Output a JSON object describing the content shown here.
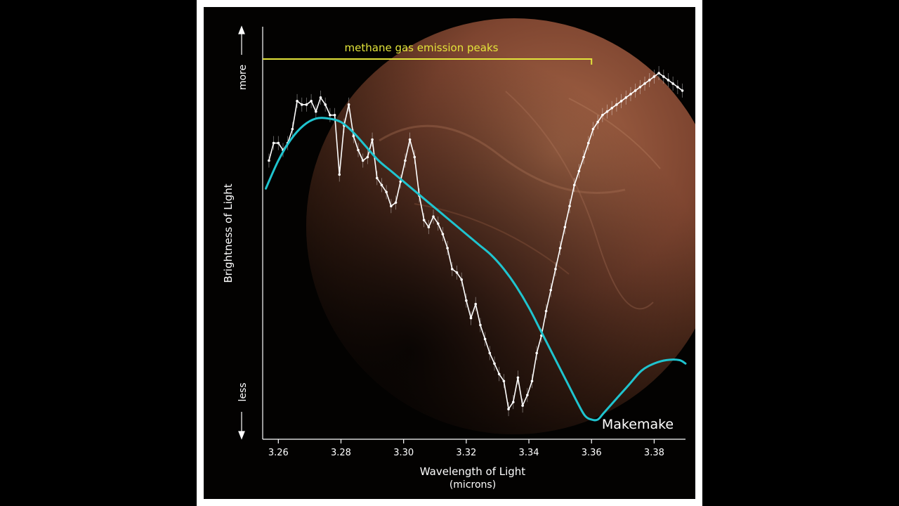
{
  "colors": {
    "background": "#030201",
    "frame": "#ffffff",
    "planet": "#8a4f33",
    "data_line": "#ffffff",
    "model_curve": "#1fc4cf",
    "annotation": "#e3e43a",
    "axis": "#ffffff"
  },
  "chart_data": {
    "type": "line",
    "title": "",
    "object_label": "Makemake",
    "annotation": "methane gas emission peaks",
    "annotation_range": [
      3.255,
      3.36
    ],
    "xlabel": "Wavelength of Light",
    "xlabel_units": "(microns)",
    "ylabel": "Brightness of Light",
    "y_more_label": "more",
    "y_less_label": "less",
    "xlim": [
      3.255,
      3.39
    ],
    "ylim": [
      0,
      1
    ],
    "y_scale": "relative, unlabeled",
    "xticks": [
      3.26,
      3.28,
      3.3,
      3.32,
      3.34,
      3.36,
      3.38
    ],
    "xtick_labels": [
      "3.26",
      "3.28",
      "3.30",
      "3.32",
      "3.34",
      "3.36",
      "3.38"
    ],
    "grid": false,
    "series": [
      {
        "kind": "measured",
        "x": [
          3.257,
          3.2585,
          3.26,
          3.2615,
          3.263,
          3.2645,
          3.266,
          3.2675,
          3.269,
          3.2705,
          3.272,
          3.2735,
          3.275,
          3.2765,
          3.278,
          3.2795,
          3.281,
          3.2825,
          3.284,
          3.2855,
          3.287,
          3.2885,
          3.29,
          3.2915,
          3.293,
          3.2945,
          3.296,
          3.2975,
          3.299,
          3.3005,
          3.302,
          3.3035,
          3.305,
          3.3065,
          3.308,
          3.3095,
          3.311,
          3.3125,
          3.314,
          3.3155,
          3.317,
          3.3185,
          3.32,
          3.3215,
          3.323,
          3.3245,
          3.326,
          3.3275,
          3.329,
          3.3305,
          3.332,
          3.3335,
          3.335,
          3.3365,
          3.338,
          3.3395,
          3.341,
          3.3425,
          3.344,
          3.3455,
          3.347,
          3.3485,
          3.35,
          3.3515,
          3.353,
          3.3545,
          3.356,
          3.3575,
          3.359,
          3.3605,
          3.362,
          3.3635,
          3.365,
          3.3665,
          3.368,
          3.3695,
          3.371,
          3.3725,
          3.374,
          3.3755,
          3.377,
          3.3785,
          3.38,
          3.3815,
          3.383,
          3.3845,
          3.386,
          3.3875,
          3.389
        ],
        "y": [
          0.75,
          0.8,
          0.8,
          0.78,
          0.8,
          0.84,
          0.92,
          0.91,
          0.91,
          0.92,
          0.89,
          0.93,
          0.91,
          0.88,
          0.88,
          0.71,
          0.85,
          0.91,
          0.82,
          0.78,
          0.75,
          0.76,
          0.81,
          0.7,
          0.68,
          0.66,
          0.62,
          0.63,
          0.69,
          0.75,
          0.81,
          0.76,
          0.65,
          0.58,
          0.56,
          0.59,
          0.57,
          0.54,
          0.5,
          0.44,
          0.43,
          0.41,
          0.35,
          0.3,
          0.34,
          0.28,
          0.24,
          0.2,
          0.17,
          0.14,
          0.12,
          0.04,
          0.06,
          0.13,
          0.05,
          0.08,
          0.12,
          0.2,
          0.25,
          0.32,
          0.38,
          0.44,
          0.5,
          0.56,
          0.62,
          0.68,
          0.72,
          0.76,
          0.8,
          0.84,
          0.86,
          0.88,
          0.89,
          0.9,
          0.91,
          0.92,
          0.93,
          0.94,
          0.95,
          0.96,
          0.97,
          0.98,
          0.99,
          1.0,
          0.99,
          0.98,
          0.97,
          0.96,
          0.95
        ],
        "note": "estimated trace"
      },
      {
        "kind": "model",
        "x": [
          3.256,
          3.26,
          3.264,
          3.268,
          3.272,
          3.276,
          3.28,
          3.284,
          3.288,
          3.292,
          3.296,
          3.3,
          3.304,
          3.308,
          3.312,
          3.316,
          3.32,
          3.324,
          3.328,
          3.332,
          3.336,
          3.34,
          3.344,
          3.348,
          3.352,
          3.356,
          3.358,
          3.36,
          3.362,
          3.364,
          3.368,
          3.372,
          3.376,
          3.38,
          3.384,
          3.388,
          3.39
        ],
        "y": [
          0.67,
          0.75,
          0.81,
          0.85,
          0.87,
          0.87,
          0.86,
          0.83,
          0.79,
          0.75,
          0.72,
          0.69,
          0.66,
          0.63,
          0.6,
          0.57,
          0.54,
          0.51,
          0.48,
          0.44,
          0.39,
          0.33,
          0.26,
          0.19,
          0.12,
          0.05,
          0.02,
          0.01,
          0.01,
          0.03,
          0.07,
          0.11,
          0.15,
          0.17,
          0.18,
          0.18,
          0.17
        ]
      }
    ]
  }
}
